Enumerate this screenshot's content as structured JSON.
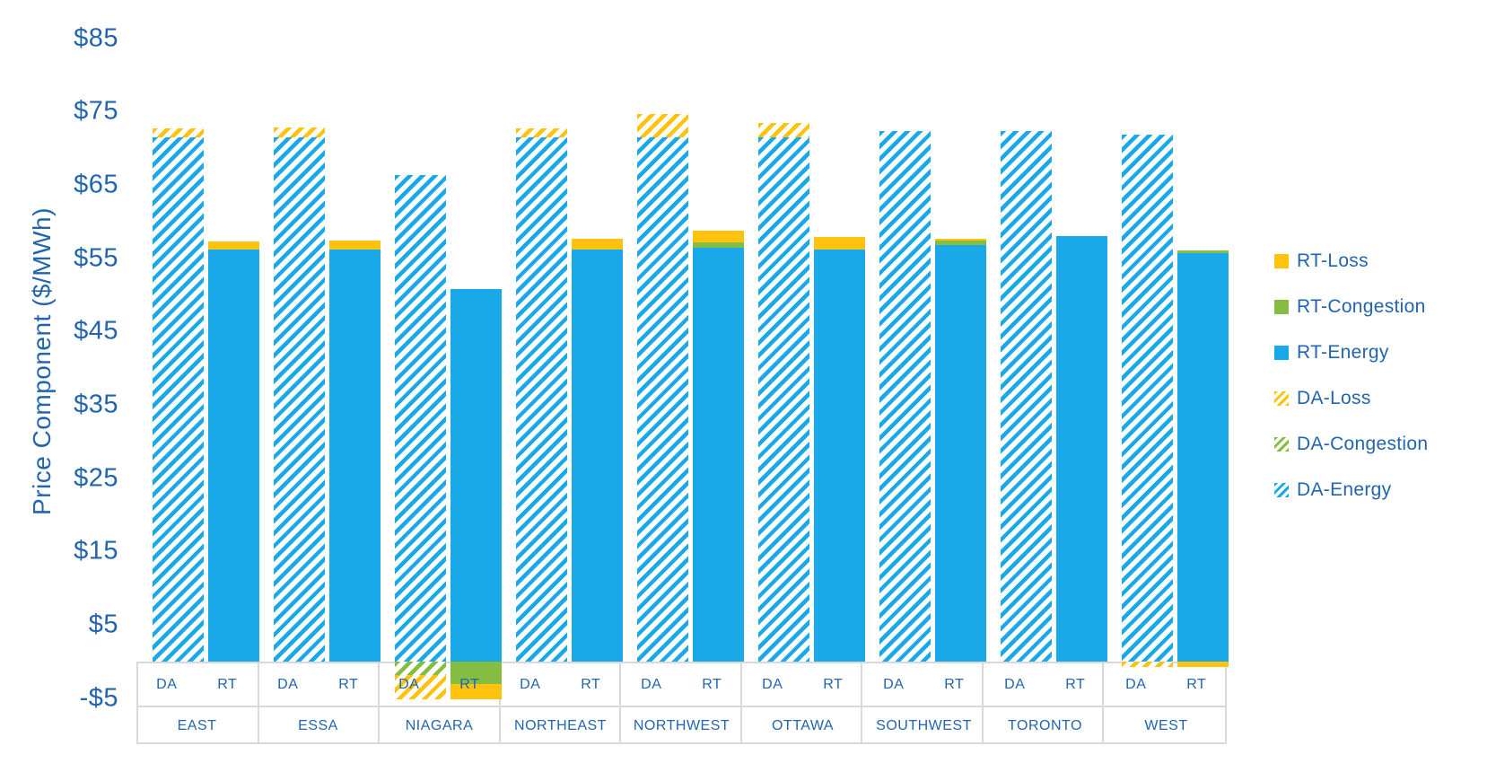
{
  "colors": {
    "text_blue": "#2265AE",
    "table_border": "#D9D9D9",
    "energy_blue": "#19A8E8",
    "congestion_green": "#85BC42",
    "loss_yellow": "#FFC20E"
  },
  "chart_data": {
    "type": "bar",
    "stacked": true,
    "title": "",
    "xlabel": "",
    "ylabel": "Price Component ($/MWh)",
    "ylim": [
      -5,
      85
    ],
    "grid": false,
    "legend_position": "right",
    "yticks": [
      {
        "label": "$85",
        "value": 85
      },
      {
        "label": "$75",
        "value": 75
      },
      {
        "label": "$65",
        "value": 65
      },
      {
        "label": "$55",
        "value": 55
      },
      {
        "label": "$45",
        "value": 45
      },
      {
        "label": "$35",
        "value": 35
      },
      {
        "label": "$25",
        "value": 25
      },
      {
        "label": "$15",
        "value": 15
      },
      {
        "label": "$5",
        "value": 5
      },
      {
        "label": "-$5",
        "value": -5
      }
    ],
    "categories": [
      "EAST",
      "ESSA",
      "NIAGARA",
      "NORTHEAST",
      "NORTHWEST",
      "OTTAWA",
      "SOUTHWEST",
      "TORONTO",
      "WEST"
    ],
    "sub_categories": [
      "DA",
      "RT"
    ],
    "series": [
      {
        "name": "RT-Loss",
        "color": "#FFC20E",
        "pattern": "solid",
        "values": [
          1.1,
          1.2,
          -2.1,
          1.5,
          1.7,
          1.7,
          0.3,
          0,
          -0.7
        ]
      },
      {
        "name": "RT-Congestion",
        "color": "#85BC42",
        "pattern": "solid",
        "values": [
          0,
          0,
          -3.1,
          0,
          0.7,
          0,
          0.6,
          0,
          0.4
        ]
      },
      {
        "name": "RT-Energy",
        "color": "#19A8E8",
        "pattern": "solid",
        "values": [
          56.2,
          56.2,
          50.8,
          56.2,
          56.4,
          56.2,
          56.8,
          58.0,
          55.7
        ]
      },
      {
        "name": "DA-Loss",
        "color": "#FFC20E",
        "pattern": "hatch",
        "values": [
          1.2,
          1.3,
          -3.3,
          1.2,
          3.2,
          2.0,
          0,
          0,
          -0.7
        ]
      },
      {
        "name": "DA-Congestion",
        "color": "#85BC42",
        "pattern": "hatch",
        "values": [
          0,
          0,
          -1.8,
          0,
          0,
          0,
          0,
          0,
          0
        ]
      },
      {
        "name": "DA-Energy",
        "color": "#19A8E8",
        "pattern": "hatch",
        "values": [
          71.5,
          71.5,
          66.3,
          71.5,
          71.5,
          71.5,
          72.3,
          72.3,
          71.8
        ]
      }
    ]
  }
}
